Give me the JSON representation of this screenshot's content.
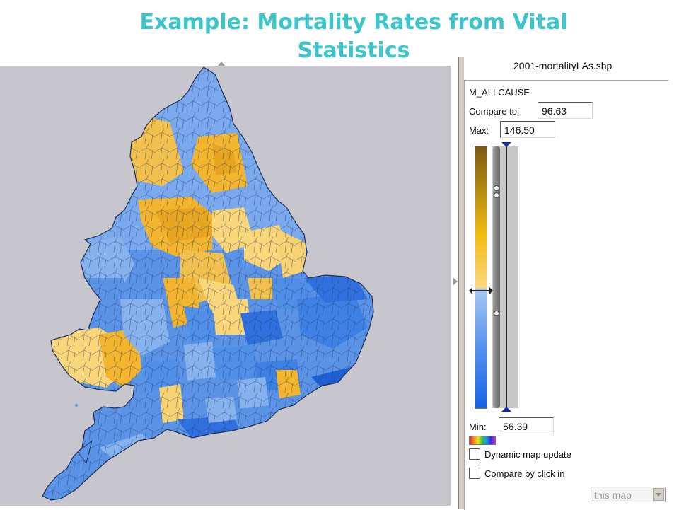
{
  "slide": {
    "title": "Example: Mortality Rates from Vital Statistics"
  },
  "map": {
    "region_name": "England and Wales local authorities",
    "background_color": "#c6c6cc",
    "high_color": "#f2b52d",
    "high_light_color": "#fad67a",
    "low_color": "#4f8fe8",
    "low_light_color": "#86b2ee",
    "dark_low_color": "#2f6fde"
  },
  "panel": {
    "file_name": "2001-mortalityLAs.shp",
    "variable": "M_ALLCAUSE",
    "compare_label": "Compare to:",
    "compare_value": "96.63",
    "max_label": "Max:",
    "max_value": "146.50",
    "min_label": "Min:",
    "min_value": "56.39",
    "dynamic_update_label": "Dynamic map update",
    "dynamic_update_checked": false,
    "compare_click_label": "Compare by click in",
    "compare_click_checked": false,
    "target_select": "this map"
  }
}
